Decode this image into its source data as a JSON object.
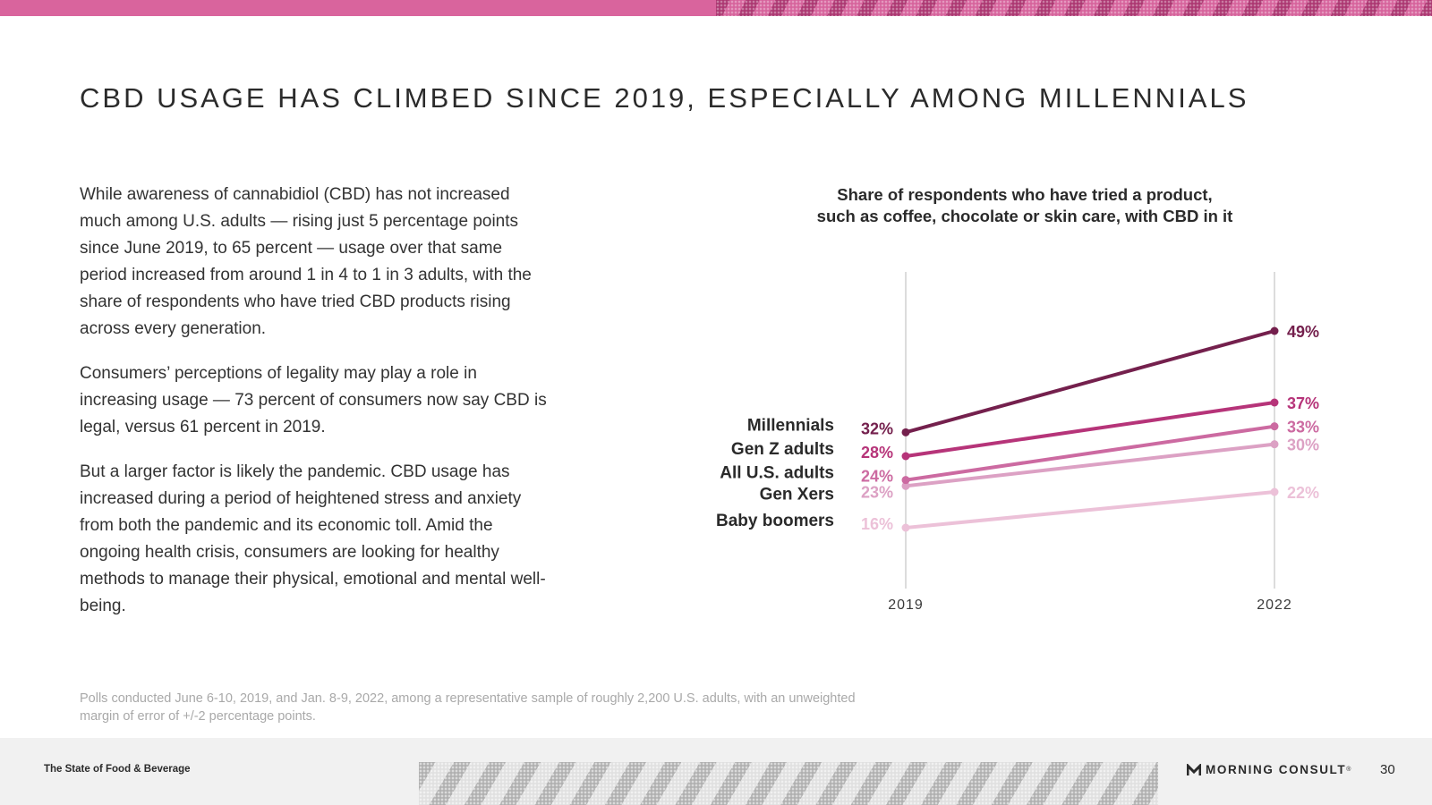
{
  "colors": {
    "accent": "#d9649d",
    "grid": "#dcdcdc",
    "series": [
      "#74204d",
      "#b63479",
      "#cc6aa1",
      "#dca1c4",
      "#ecc1d8"
    ]
  },
  "page": {
    "title": "CBD USAGE HAS CLIMBED SINCE 2019, ESPECIALLY AMONG MILLENNIALS",
    "paragraphs": [
      "While awareness of cannabidiol (CBD) has not increased much among U.S. adults — rising just 5 percentage points since June 2019, to 65 percent — usage over that same period increased from around 1 in 4 to 1 in 3 adults, with the share of respondents who have tried CBD products rising across every generation.",
      "Consumers’ perceptions of legality may play a role in increasing usage — 73 percent of consumers now say CBD is legal, versus 61 percent in 2019.",
      "But a larger factor is likely the pandemic. CBD usage has increased during a period of heightened stress and anxiety from both the pandemic and its economic toll. Amid the ongoing health crisis, consumers are looking for healthy methods to manage their physical, emotional and mental well-being."
    ],
    "footnote": "Polls conducted June 6-10, 2019, and Jan. 8-9, 2022, among a representative sample of roughly 2,200 U.S. adults, with an unweighted margin of error of +/-2 percentage points."
  },
  "footer": {
    "report_name": "The State of Food & Beverage",
    "brand": "MORNING CONSULT",
    "brand_mark": "®",
    "page_number": "30"
  },
  "chart_data": {
    "type": "line",
    "title": "Share of respondents who have tried a product, such as coffee, chocolate or skin care, with CBD in it",
    "title_lines": [
      "Share of respondents who have tried a product,",
      "such as coffee, chocolate or skin care, with CBD in it"
    ],
    "x": [
      "2019",
      "2022"
    ],
    "ylim": [
      10,
      55
    ],
    "value_suffix": "%",
    "grid": "vertical lines at each year",
    "series": [
      {
        "name": "Millennials",
        "values": [
          32,
          49
        ]
      },
      {
        "name": "Gen Z adults",
        "values": [
          28,
          37
        ]
      },
      {
        "name": "All U.S. adults",
        "values": [
          24,
          33
        ]
      },
      {
        "name": "Gen Xers",
        "values": [
          23,
          30
        ]
      },
      {
        "name": "Baby boomers",
        "values": [
          16,
          22
        ]
      }
    ]
  }
}
